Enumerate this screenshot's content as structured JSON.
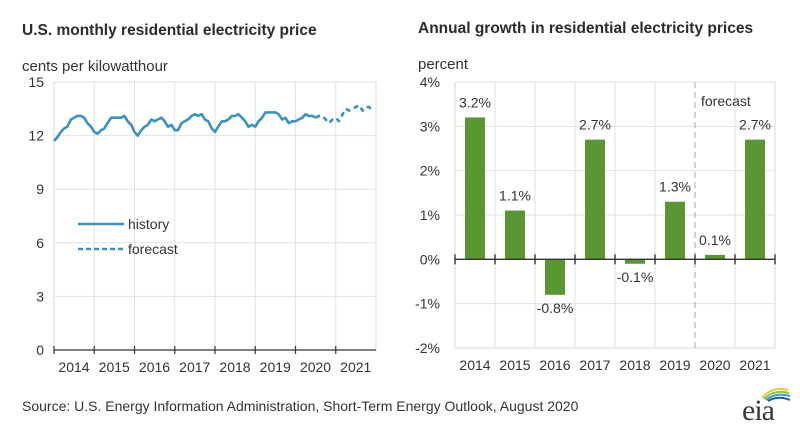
{
  "chart_data": [
    {
      "type": "line",
      "title": "U.S. monthly residential electricity price",
      "ylabel": "cents per kilowatthour",
      "xlabel": "",
      "ylim": [
        0,
        15
      ],
      "yticks": [
        "0",
        "3",
        "6",
        "9",
        "12",
        "15"
      ],
      "xlim": [
        2014,
        2022
      ],
      "xticks": [
        "2014",
        "2015",
        "2016",
        "2017",
        "2018",
        "2019",
        "2020",
        "2021"
      ],
      "grid": true,
      "legend": {
        "placement": "center-left",
        "entries": [
          "history",
          "forecast"
        ]
      },
      "color": "#3d92bf",
      "series": [
        {
          "name": "history",
          "style": "solid",
          "x": [
            2014.0,
            2014.08,
            2014.17,
            2014.25,
            2014.33,
            2014.42,
            2014.5,
            2014.58,
            2014.67,
            2014.75,
            2014.83,
            2014.92,
            2015.0,
            2015.08,
            2015.17,
            2015.25,
            2015.33,
            2015.42,
            2015.5,
            2015.58,
            2015.67,
            2015.75,
            2015.83,
            2015.92,
            2016.0,
            2016.08,
            2016.17,
            2016.25,
            2016.33,
            2016.42,
            2016.5,
            2016.58,
            2016.67,
            2016.75,
            2016.83,
            2016.92,
            2017.0,
            2017.08,
            2017.17,
            2017.25,
            2017.33,
            2017.42,
            2017.5,
            2017.58,
            2017.67,
            2017.75,
            2017.83,
            2017.92,
            2018.0,
            2018.08,
            2018.17,
            2018.25,
            2018.33,
            2018.42,
            2018.5,
            2018.58,
            2018.67,
            2018.75,
            2018.83,
            2018.92,
            2019.0,
            2019.08,
            2019.17,
            2019.25,
            2019.33,
            2019.42,
            2019.5,
            2019.58,
            2019.67,
            2019.75,
            2019.83,
            2019.92,
            2020.0,
            2020.08,
            2020.17,
            2020.25,
            2020.33,
            2020.42,
            2020.5
          ],
          "y": [
            11.7,
            11.9,
            12.2,
            12.4,
            12.5,
            12.9,
            13.0,
            13.1,
            13.1,
            13.0,
            12.7,
            12.5,
            12.2,
            12.1,
            12.3,
            12.4,
            12.7,
            13.0,
            13.0,
            13.0,
            13.0,
            13.1,
            12.8,
            12.6,
            12.2,
            12.0,
            12.3,
            12.5,
            12.6,
            12.9,
            12.8,
            12.9,
            13.0,
            12.8,
            12.5,
            12.6,
            12.3,
            12.3,
            12.7,
            12.8,
            12.9,
            13.1,
            13.2,
            13.1,
            13.2,
            12.9,
            12.8,
            12.4,
            12.2,
            12.5,
            12.8,
            12.8,
            12.9,
            13.1,
            13.1,
            13.2,
            13.0,
            12.8,
            12.5,
            12.6,
            12.5,
            12.8,
            13.0,
            13.3,
            13.3,
            13.3,
            13.3,
            13.2,
            12.9,
            13.0,
            12.7,
            12.8,
            12.8,
            12.9,
            13.0,
            13.2,
            13.1,
            13.1,
            13.0
          ]
        },
        {
          "name": "forecast",
          "style": "dashed",
          "x": [
            2020.5,
            2020.58,
            2020.67,
            2020.75,
            2020.83,
            2020.92,
            2021.0,
            2021.08,
            2021.17,
            2021.25,
            2021.33,
            2021.42,
            2021.5,
            2021.58,
            2021.67,
            2021.75,
            2021.83,
            2021.92
          ],
          "y": [
            13.0,
            13.1,
            13.1,
            12.9,
            12.7,
            12.9,
            13.0,
            12.8,
            13.2,
            13.5,
            13.4,
            13.5,
            13.6,
            13.7,
            13.4,
            13.6,
            13.6,
            13.3
          ]
        }
      ]
    },
    {
      "type": "bar",
      "title": "Annual growth in residential electricity prices",
      "ylabel": "percent",
      "xlabel": "",
      "ylim": [
        -2,
        4
      ],
      "yticks": [
        "-2%",
        "-1%",
        "0%",
        "1%",
        "2%",
        "3%",
        "4%"
      ],
      "grid": true,
      "color": "#5a9632",
      "categories": [
        "2014",
        "2015",
        "2016",
        "2017",
        "2018",
        "2019",
        "2020",
        "2021"
      ],
      "values": [
        3.2,
        1.1,
        -0.8,
        2.7,
        -0.1,
        1.3,
        0.1,
        2.7
      ],
      "data_labels": [
        "3.2%",
        "1.1%",
        "-0.8%",
        "2.7%",
        "-0.1%",
        "1.3%",
        "0.1%",
        "2.7%"
      ],
      "annotation": {
        "text": "forecast",
        "starts_at": "2020"
      }
    }
  ],
  "left": {
    "title": "U.S. monthly residential electricity price",
    "subtitle": "cents per kilowatthour"
  },
  "right": {
    "title": "Annual growth in residential electricity prices",
    "subtitle": "percent"
  },
  "footer": {
    "source": "Source: U.S. Energy Information Administration, Short-Term Energy Outlook, August 2020",
    "logo_text": "eia"
  }
}
